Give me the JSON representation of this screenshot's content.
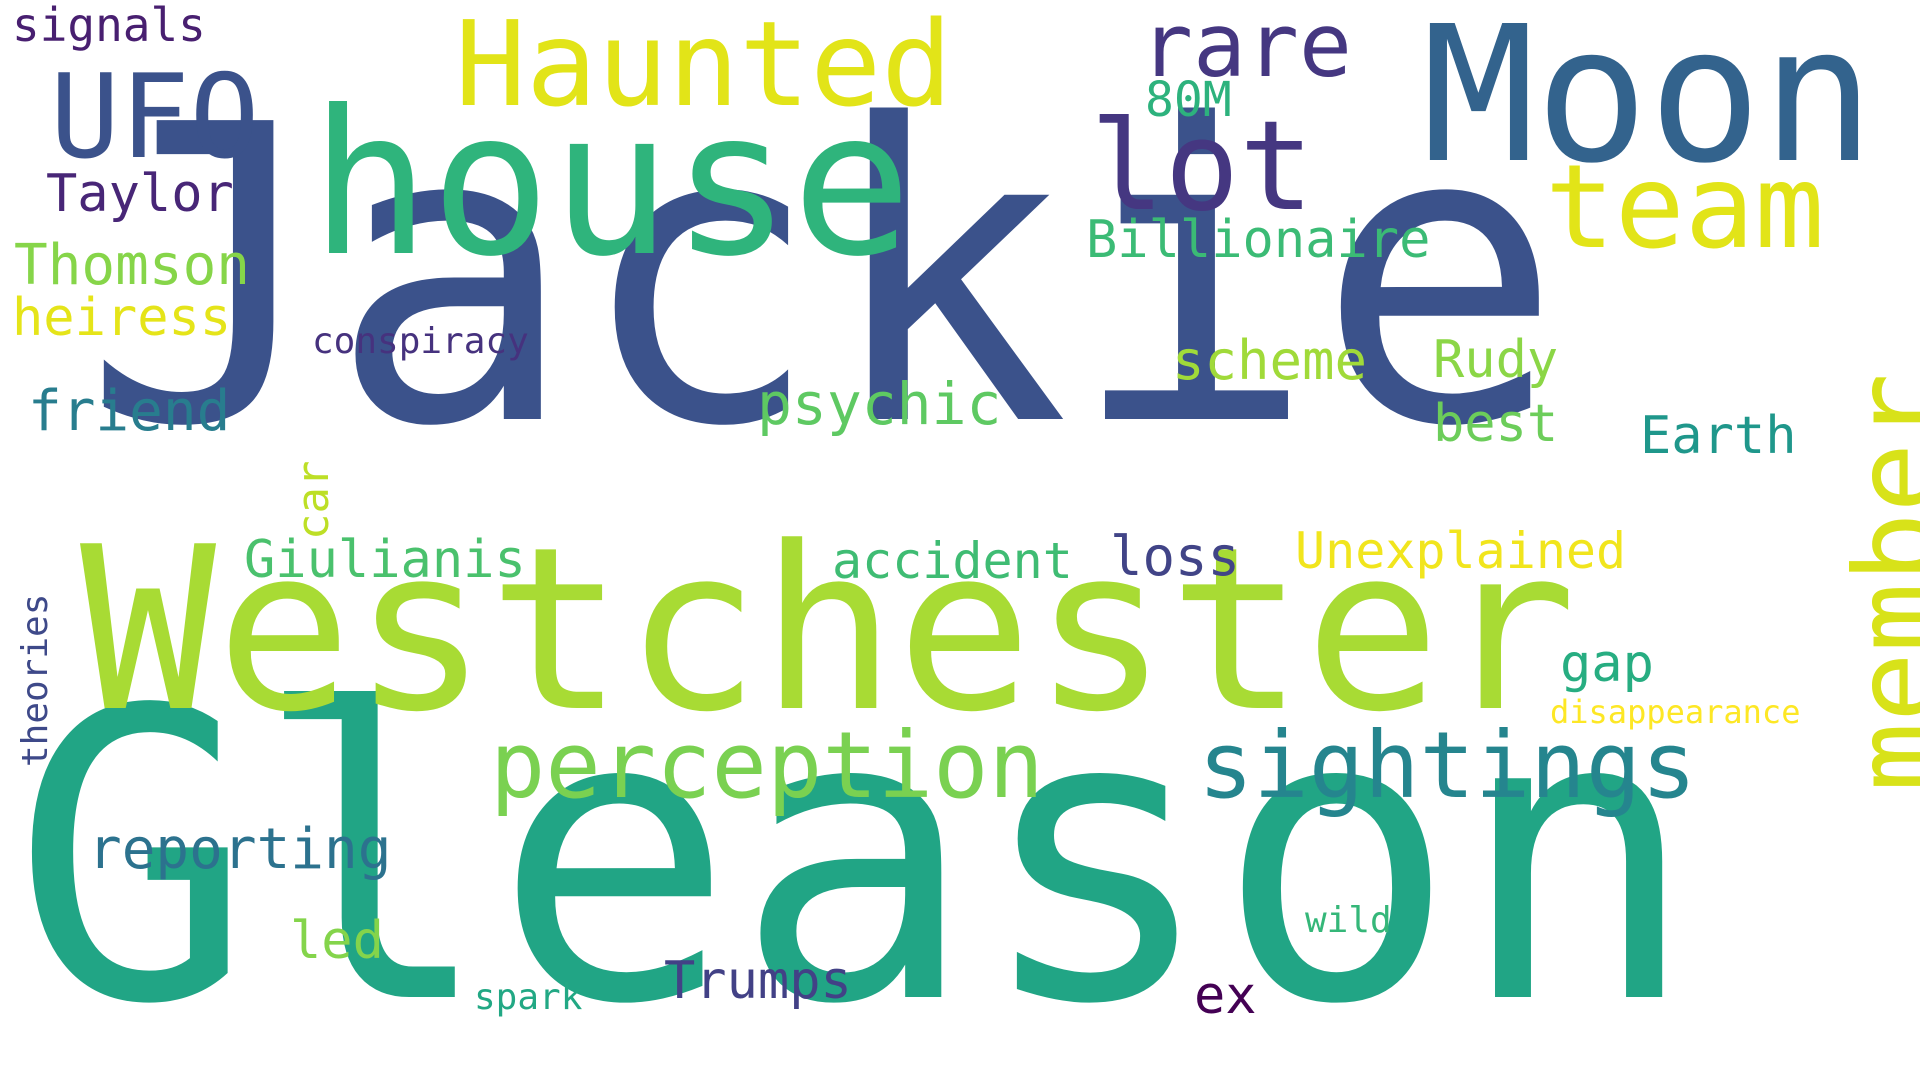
{
  "words": [
    {
      "text": "Jackie",
      "color": "#3b528b"
    },
    {
      "text": "Gleason",
      "color": "#21a585"
    },
    {
      "text": "Westchester",
      "color": "#a8db34"
    },
    {
      "text": "house",
      "color": "#2fb47c"
    },
    {
      "text": "Moon",
      "color": "#33638d"
    },
    {
      "text": "Haunted",
      "color": "#e2e418"
    },
    {
      "text": "UFO",
      "color": "#3b528b"
    },
    {
      "text": "lot",
      "color": "#453781"
    },
    {
      "text": "rare",
      "color": "#453781"
    },
    {
      "text": "team",
      "color": "#e2e418"
    },
    {
      "text": "member",
      "color": "#d8e219"
    },
    {
      "text": "perception",
      "color": "#7ad151"
    },
    {
      "text": "sightings",
      "color": "#25858e"
    },
    {
      "text": "signals",
      "color": "#481f70"
    },
    {
      "text": "Taylor",
      "color": "#482677"
    },
    {
      "text": "Thomson",
      "color": "#86d549"
    },
    {
      "text": "heiress",
      "color": "#e5e419"
    },
    {
      "text": "80M",
      "color": "#2db27d"
    },
    {
      "text": "Billionaire",
      "color": "#3bbb75"
    },
    {
      "text": "conspiracy",
      "color": "#46327e"
    },
    {
      "text": "friend",
      "color": "#287d8e"
    },
    {
      "text": "psychic",
      "color": "#5ec962"
    },
    {
      "text": "scheme",
      "color": "#a0da39"
    },
    {
      "text": "Rudy",
      "color": "#8bd646"
    },
    {
      "text": "best",
      "color": "#6ccd5a"
    },
    {
      "text": "Earth",
      "color": "#1f978b"
    },
    {
      "text": "car",
      "color": "#bddf26"
    },
    {
      "text": "Giulianis",
      "color": "#4ac16d"
    },
    {
      "text": "accident",
      "color": "#3fbc73"
    },
    {
      "text": "loss",
      "color": "#414487"
    },
    {
      "text": "Unexplained",
      "color": "#f1e51d"
    },
    {
      "text": "gap",
      "color": "#27ad81"
    },
    {
      "text": "disappearance",
      "color": "#fde725"
    },
    {
      "text": "theories",
      "color": "#3e4989"
    },
    {
      "text": "reporting",
      "color": "#2c728e"
    },
    {
      "text": "led",
      "color": "#84d44b"
    },
    {
      "text": "wild",
      "color": "#35b779"
    },
    {
      "text": "Trumps",
      "color": "#424186"
    },
    {
      "text": "ex",
      "color": "#440154"
    },
    {
      "text": "spark",
      "color": "#22a884"
    }
  ]
}
